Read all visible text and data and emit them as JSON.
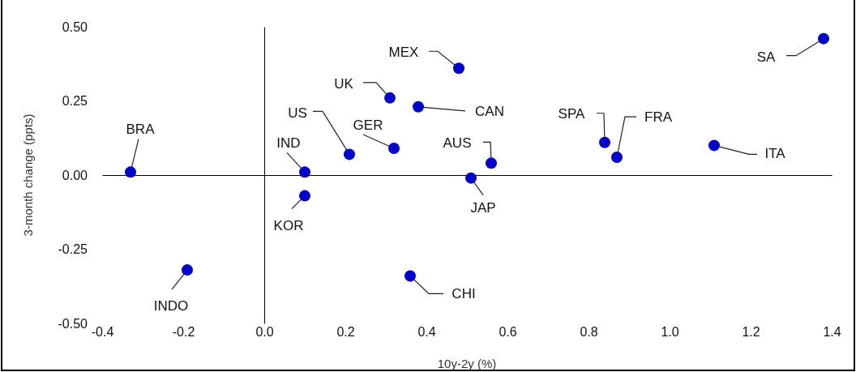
{
  "chart_data": {
    "type": "scatter",
    "xlabel": "10y-2y (%)",
    "ylabel": "3-month change (ppts)",
    "xlim": [
      -0.4,
      1.4
    ],
    "ylim": [
      -0.5,
      0.5
    ],
    "xticks": [
      {
        "value": -0.4,
        "label": "-0.4"
      },
      {
        "value": -0.2,
        "label": "-0.2"
      },
      {
        "value": 0,
        "label": "0.0"
      },
      {
        "value": 0.2,
        "label": "0.2"
      },
      {
        "value": 0.4,
        "label": "0.4"
      },
      {
        "value": 0.6,
        "label": "0.6"
      },
      {
        "value": 0.8,
        "label": "0.8"
      },
      {
        "value": 1,
        "label": "1.0"
      },
      {
        "value": 1.2,
        "label": "1.2"
      },
      {
        "value": 1.4,
        "label": "1.4"
      }
    ],
    "yticks": [
      {
        "value": -0.5,
        "label": "-0.50"
      },
      {
        "value": -0.25,
        "label": "-0.25"
      },
      {
        "value": 0,
        "label": "0.00"
      },
      {
        "value": 0.25,
        "label": "0.25"
      },
      {
        "value": 0.5,
        "label": "0.50"
      }
    ],
    "marker": "circle",
    "series": [
      {
        "color": "#0000cc",
        "x": [
          -0.33,
          -0.19,
          0.1,
          0.1,
          0.21,
          0.32,
          0.31,
          0.38,
          0.48,
          0.36,
          0.51,
          0.56,
          0.84,
          0.87,
          1.11,
          1.38
        ],
        "values": [
          0.01,
          -0.32,
          0.01,
          -0.07,
          0.07,
          0.09,
          0.26,
          0.23,
          0.36,
          -0.34,
          -0.01,
          0.04,
          0.11,
          0.06,
          0.1,
          0.46
        ]
      }
    ],
    "annotations": [
      {
        "text": "BRA",
        "x": -0.33,
        "y": 0.01
      },
      {
        "text": "INDO",
        "x": -0.19,
        "y": -0.32
      },
      {
        "text": "IND",
        "x": 0.1,
        "y": 0.01
      },
      {
        "text": "KOR",
        "x": 0.1,
        "y": -0.07
      },
      {
        "text": "US",
        "x": 0.21,
        "y": 0.07
      },
      {
        "text": "GER",
        "x": 0.32,
        "y": 0.09
      },
      {
        "text": "UK",
        "x": 0.31,
        "y": 0.26
      },
      {
        "text": "CAN",
        "x": 0.38,
        "y": 0.23
      },
      {
        "text": "MEX",
        "x": 0.48,
        "y": 0.36
      },
      {
        "text": "CHI",
        "x": 0.36,
        "y": -0.34
      },
      {
        "text": "JAP",
        "x": 0.51,
        "y": -0.01
      },
      {
        "text": "AUS",
        "x": 0.56,
        "y": 0.04
      },
      {
        "text": "SPA",
        "x": 0.84,
        "y": 0.11
      },
      {
        "text": "FRA",
        "x": 0.87,
        "y": 0.06
      },
      {
        "text": "ITA",
        "x": 1.11,
        "y": 0.1
      },
      {
        "text": "SA",
        "x": 1.38,
        "y": 0.46
      }
    ]
  }
}
